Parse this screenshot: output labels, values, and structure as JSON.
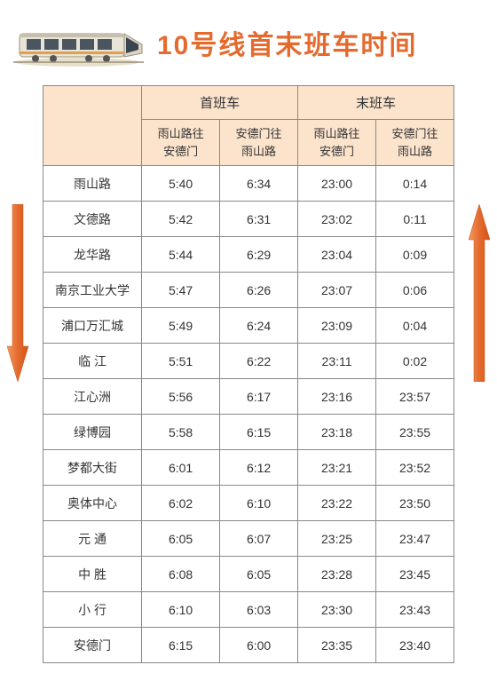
{
  "title": "10号线首末班车时间",
  "title_color": "#e56a2e",
  "header_bg": "#fbe3cc",
  "border_color": "#888888",
  "arrow_down_fill": "#e56a2e",
  "arrow_down_stroke": "#c4521a",
  "arrow_up_fill": "#e56a2e",
  "arrow_up_stroke": "#c4521a",
  "headers": {
    "first_train": "首班车",
    "last_train": "末班车",
    "dir1": "雨山路往\n安德门",
    "dir2": "安德门往\n雨山路"
  },
  "stations": [
    {
      "name": "雨山路",
      "first1": "5:40",
      "first2": "6:34",
      "last1": "23:00",
      "last2": "0:14"
    },
    {
      "name": "文德路",
      "first1": "5:42",
      "first2": "6:31",
      "last1": "23:02",
      "last2": "0:11"
    },
    {
      "name": "龙华路",
      "first1": "5:44",
      "first2": "6:29",
      "last1": "23:04",
      "last2": "0:09"
    },
    {
      "name": "南京工业大学",
      "first1": "5:47",
      "first2": "6:26",
      "last1": "23:07",
      "last2": "0:06"
    },
    {
      "name": "浦口万汇城",
      "first1": "5:49",
      "first2": "6:24",
      "last1": "23:09",
      "last2": "0:04"
    },
    {
      "name": "临 江",
      "first1": "5:51",
      "first2": "6:22",
      "last1": "23:11",
      "last2": "0:02"
    },
    {
      "name": "江心洲",
      "first1": "5:56",
      "first2": "6:17",
      "last1": "23:16",
      "last2": "23:57"
    },
    {
      "name": "绿博园",
      "first1": "5:58",
      "first2": "6:15",
      "last1": "23:18",
      "last2": "23:55"
    },
    {
      "name": "梦都大街",
      "first1": "6:01",
      "first2": "6:12",
      "last1": "23:21",
      "last2": "23:52"
    },
    {
      "name": "奥体中心",
      "first1": "6:02",
      "first2": "6:10",
      "last1": "23:22",
      "last2": "23:50"
    },
    {
      "name": "元 通",
      "first1": "6:05",
      "first2": "6:07",
      "last1": "23:25",
      "last2": "23:47"
    },
    {
      "name": "中 胜",
      "first1": "6:08",
      "first2": "6:05",
      "last1": "23:28",
      "last2": "23:45"
    },
    {
      "name": "小 行",
      "first1": "6:10",
      "first2": "6:03",
      "last1": "23:30",
      "last2": "23:43"
    },
    {
      "name": "安德门",
      "first1": "6:15",
      "first2": "6:00",
      "last1": "23:35",
      "last2": "23:40"
    }
  ]
}
